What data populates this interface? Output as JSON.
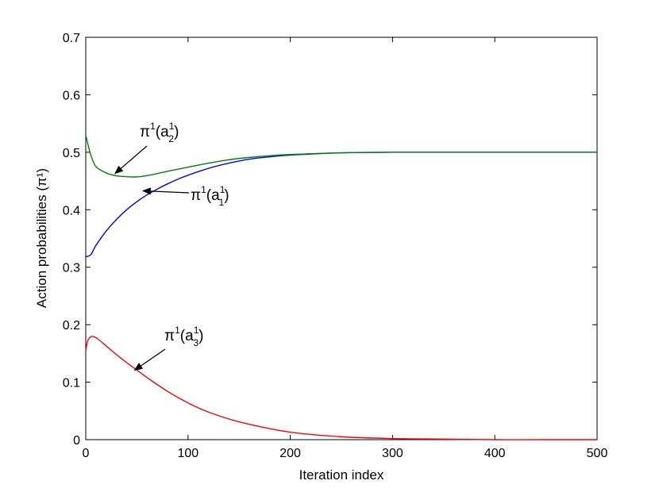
{
  "chart_data": {
    "type": "line",
    "xlabel": "Iteration index",
    "ylabel": "Action probabilities (π¹)",
    "xlim": [
      0,
      500
    ],
    "ylim": [
      0,
      0.7
    ],
    "xticks": [
      0,
      100,
      200,
      300,
      400,
      500
    ],
    "xtick_labels": [
      "0",
      "100",
      "200",
      "300",
      "400",
      "500"
    ],
    "yticks": [
      0,
      0.1,
      0.2,
      0.3,
      0.4,
      0.5,
      0.6,
      0.7
    ],
    "ytick_labels": [
      "0",
      "0.1",
      "0.2",
      "0.3",
      "0.4",
      "0.5",
      "0.6",
      "0.7"
    ],
    "grid": false,
    "series": [
      {
        "color": "#0000ff",
        "x": [
          0,
          5,
          10,
          20,
          30,
          40,
          50,
          60,
          70,
          80,
          90,
          100,
          120,
          140,
          160,
          180,
          200,
          250,
          300,
          350,
          400,
          450,
          500
        ],
        "y": [
          0.318,
          0.322,
          0.338,
          0.363,
          0.383,
          0.4,
          0.414,
          0.426,
          0.436,
          0.445,
          0.453,
          0.46,
          0.472,
          0.481,
          0.488,
          0.492,
          0.495,
          0.499,
          0.5,
          0.5,
          0.5,
          0.5,
          0.5
        ]
      },
      {
        "color": "#008000",
        "x": [
          0,
          2,
          5,
          10,
          20,
          30,
          40,
          47,
          55,
          65,
          80,
          100,
          120,
          140,
          160,
          180,
          200,
          250,
          300,
          350,
          400,
          450,
          500
        ],
        "y": [
          0.53,
          0.515,
          0.495,
          0.475,
          0.464,
          0.459,
          0.4575,
          0.457,
          0.458,
          0.461,
          0.467,
          0.474,
          0.481,
          0.487,
          0.491,
          0.494,
          0.496,
          0.499,
          0.5,
          0.5,
          0.5,
          0.5,
          0.5
        ]
      },
      {
        "color": "#ff0000",
        "x": [
          0,
          2,
          5,
          8,
          12,
          20,
          30,
          40,
          50,
          60,
          80,
          100,
          120,
          150,
          200,
          250,
          300,
          350,
          400,
          450,
          500
        ],
        "y": [
          0.155,
          0.172,
          0.179,
          0.179,
          0.175,
          0.163,
          0.148,
          0.134,
          0.121,
          0.108,
          0.084,
          0.064,
          0.048,
          0.031,
          0.013,
          0.005,
          0.002,
          0.001,
          0.0,
          0.0,
          0.0
        ]
      }
    ],
    "annotations": [
      {
        "pi": "π",
        "sup": "1",
        "open": "(a",
        "sub": "1",
        "close": ")",
        "target": [
          55,
          0.433
        ],
        "color": "#000000"
      },
      {
        "pi": "π",
        "sup": "1",
        "open": "(a",
        "sub": "2",
        "close": ")",
        "target": [
          28,
          0.462
        ],
        "color": "#000000"
      },
      {
        "pi": "π",
        "sup": "1",
        "open": "(a",
        "sub": "3",
        "close": ")",
        "target": [
          47,
          0.12
        ],
        "color": "#000000"
      }
    ]
  }
}
